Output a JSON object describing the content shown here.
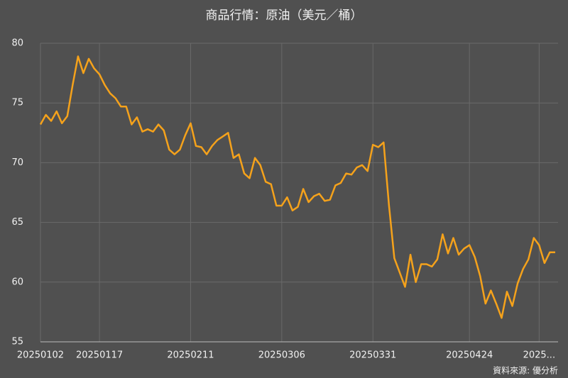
{
  "chart_data": {
    "type": "line",
    "title": "商品行情：原油（美元／桶）",
    "source": "資料來源: 優分析",
    "categories": [
      "20250102",
      null,
      null,
      null,
      null,
      null,
      null,
      null,
      null,
      null,
      null,
      "20250117",
      null,
      null,
      null,
      null,
      null,
      null,
      null,
      null,
      null,
      null,
      null,
      null,
      null,
      null,
      null,
      null,
      "20250211",
      null,
      null,
      null,
      null,
      null,
      null,
      null,
      null,
      null,
      null,
      null,
      null,
      null,
      null,
      null,
      null,
      "20250306",
      null,
      null,
      null,
      null,
      null,
      null,
      null,
      null,
      null,
      null,
      null,
      null,
      null,
      null,
      null,
      null,
      "20250331",
      null,
      null,
      null,
      null,
      null,
      null,
      null,
      null,
      null,
      null,
      null,
      null,
      null,
      null,
      null,
      null,
      null,
      "20250424",
      null,
      null,
      null,
      null,
      null,
      null,
      null,
      null,
      null,
      null,
      null,
      null,
      "2025...",
      null,
      null,
      null
    ],
    "values": [
      73.2,
      74.0,
      73.5,
      74.3,
      73.3,
      73.9,
      76.5,
      78.9,
      77.5,
      78.7,
      77.9,
      77.4,
      76.5,
      75.8,
      75.4,
      74.7,
      74.7,
      73.2,
      73.8,
      72.6,
      72.8,
      72.6,
      73.2,
      72.7,
      71.1,
      70.7,
      71.1,
      72.3,
      73.3,
      71.4,
      71.3,
      70.7,
      71.4,
      71.9,
      72.2,
      72.5,
      70.4,
      70.7,
      69.1,
      68.7,
      70.4,
      69.8,
      68.4,
      68.2,
      66.4,
      66.4,
      67.1,
      66.0,
      66.3,
      67.8,
      66.7,
      67.2,
      67.4,
      66.8,
      66.9,
      68.1,
      68.3,
      69.1,
      69.0,
      69.6,
      69.8,
      69.3,
      71.5,
      71.3,
      71.7,
      66.4,
      62.0,
      60.8,
      59.6,
      62.3,
      60.0,
      61.5,
      61.5,
      61.3,
      61.9,
      64.0,
      62.4,
      63.7,
      62.3,
      62.8,
      63.1,
      62.1,
      60.5,
      58.2,
      59.3,
      58.2,
      57.0,
      59.2,
      58.0,
      59.9,
      61.1,
      61.9,
      63.7,
      63.1,
      61.6,
      62.5,
      62.5
    ],
    "color": "#f5a21b",
    "ylim": [
      55,
      80
    ],
    "yticks": [
      55,
      60,
      65,
      70,
      75,
      80
    ],
    "grid": true
  }
}
